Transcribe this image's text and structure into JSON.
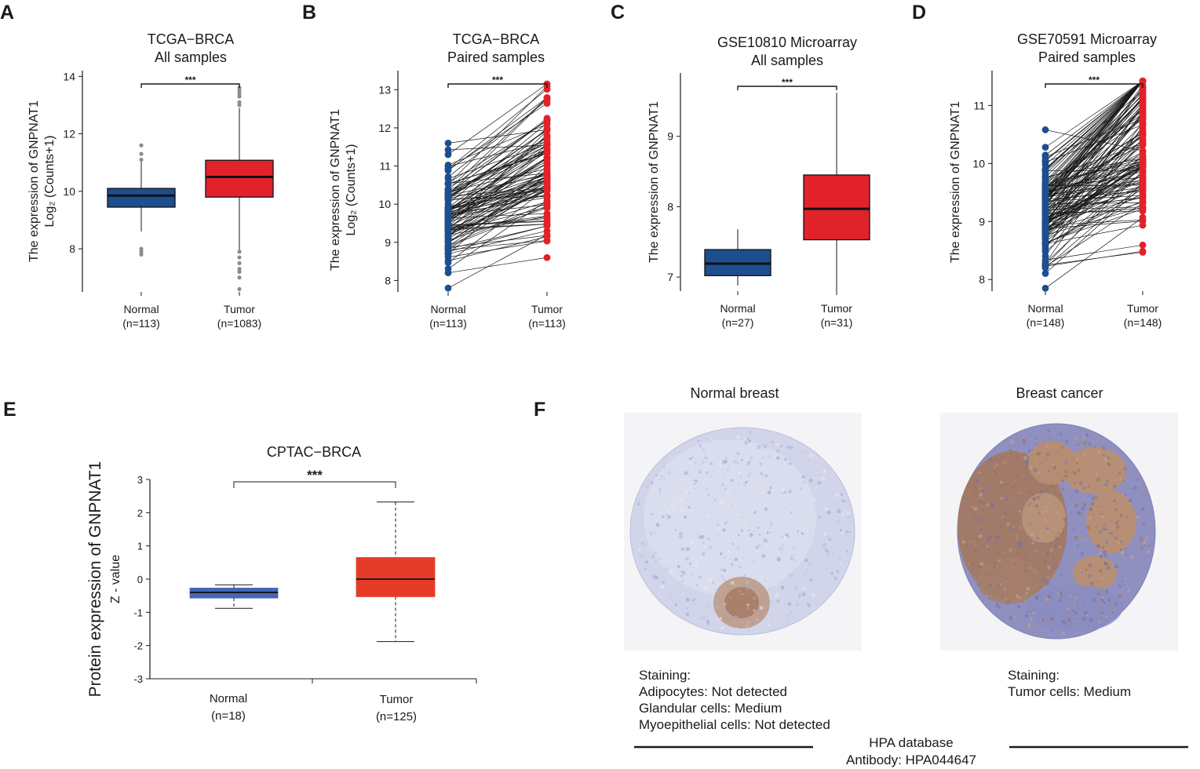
{
  "panel_labels": [
    "A",
    "B",
    "C",
    "D",
    "E",
    "F"
  ],
  "colors": {
    "normal": "#1d4e8e",
    "tumor": "#e2222a",
    "normal_e": "#4466b4",
    "tumor_e": "#e53c2a",
    "outlier": "#8c8c8c",
    "tissue_normal": "#c9cde6",
    "tissue_cancer": "#a07a66"
  },
  "chart_data": [
    {
      "id": "A",
      "type": "box",
      "title": [
        "TCGA−BRCA",
        "All samples"
      ],
      "ylabel": [
        "The expression of GNPNAT1",
        "Log₂ (Counts+1)"
      ],
      "ylim": [
        6.5,
        14.2
      ],
      "yticks": [
        8,
        10,
        12,
        14
      ],
      "categories": [
        "Normal",
        "Tumor"
      ],
      "n_labels": [
        "(n=113)",
        "(n=1083)"
      ],
      "boxes": [
        {
          "min": 8.6,
          "q1": 9.45,
          "median": 9.85,
          "q3": 10.1,
          "max": 11.05,
          "outliers": [
            8.0,
            7.9,
            7.8,
            11.1,
            11.3,
            11.6
          ]
        },
        {
          "min": 7.95,
          "q1": 9.8,
          "median": 10.5,
          "q3": 11.08,
          "max": 12.9,
          "outliers": [
            7.9,
            7.7,
            7.5,
            7.3,
            7.2,
            7.0,
            6.6,
            13.0,
            13.1,
            13.3,
            13.4,
            13.5,
            13.6
          ]
        }
      ],
      "significance": "***"
    },
    {
      "id": "B",
      "type": "paired",
      "title": [
        "TCGA−BRCA",
        "Paired samples"
      ],
      "ylabel": [
        "The expression of GNPNAT1",
        "Log₂ (Counts+1)"
      ],
      "ylim": [
        7.7,
        13.5
      ],
      "yticks": [
        8,
        9,
        10,
        11,
        12,
        13
      ],
      "categories": [
        "Normal",
        "Tumor"
      ],
      "n_labels": [
        "(n=113)",
        "(n=113)"
      ],
      "n_pairs": 113,
      "normal_range": [
        7.8,
        11.6
      ],
      "tumor_range": [
        8.6,
        13.15
      ],
      "significance": "***"
    },
    {
      "id": "C",
      "type": "box",
      "title": [
        "GSE10810 Microarray",
        "All samples"
      ],
      "ylabel": [
        "The expression of GNPNAT1"
      ],
      "ylim": [
        6.8,
        9.9
      ],
      "yticks": [
        7,
        8,
        9
      ],
      "categories": [
        "Normal",
        "Tumor"
      ],
      "n_labels": [
        "(n=27)",
        "(n=31)"
      ],
      "boxes": [
        {
          "min": 6.88,
          "q1": 7.02,
          "median": 7.19,
          "q3": 7.39,
          "max": 7.68,
          "outliers": []
        },
        {
          "min": 6.78,
          "q1": 7.53,
          "median": 7.97,
          "q3": 8.45,
          "max": 9.62,
          "outliers": []
        }
      ],
      "significance": "***"
    },
    {
      "id": "D",
      "type": "paired",
      "title": [
        "GSE70591 Microarray",
        "Paired samples"
      ],
      "ylabel": [
        "The expression of GNPNAT1"
      ],
      "ylim": [
        7.8,
        11.6
      ],
      "yticks": [
        8,
        9,
        10,
        11
      ],
      "categories": [
        "Normal",
        "Tumor"
      ],
      "n_labels": [
        "(n=148)",
        "(n=148)"
      ],
      "n_pairs": 148,
      "normal_range": [
        7.85,
        10.58
      ],
      "tumor_range": [
        8.47,
        11.42
      ],
      "significance": "***"
    },
    {
      "id": "E",
      "type": "box",
      "title": [
        "CPTAC−BRCA"
      ],
      "ylabel": [
        "Protein expression of GNPNAT1",
        "Z - value"
      ],
      "ylim": [
        -3,
        3
      ],
      "yticks": [
        -3,
        -2,
        -1,
        0,
        1,
        2,
        3
      ],
      "categories": [
        "Normal",
        "Tumor"
      ],
      "n_labels": [
        "(n=18)",
        "(n=125)"
      ],
      "boxes": [
        {
          "min": -0.88,
          "q1": -0.57,
          "median": -0.4,
          "q3": -0.27,
          "max": -0.17,
          "outliers": []
        },
        {
          "min": -1.88,
          "q1": -0.53,
          "median": 0.0,
          "q3": 0.65,
          "max": 2.32,
          "outliers": []
        }
      ],
      "significance": "***"
    }
  ],
  "panel_f": {
    "titles": [
      "Normal breast",
      "Breast cancer"
    ],
    "normal_staining": [
      "Staining:",
      "Adipocytes: Not detected",
      "Glandular cells: Medium",
      "Myoepithelial cells: Not detected"
    ],
    "cancer_staining": [
      "Staining:",
      "Tumor cells: Medium"
    ],
    "footer": [
      "HPA database",
      "Antibody: HPA044647"
    ]
  }
}
